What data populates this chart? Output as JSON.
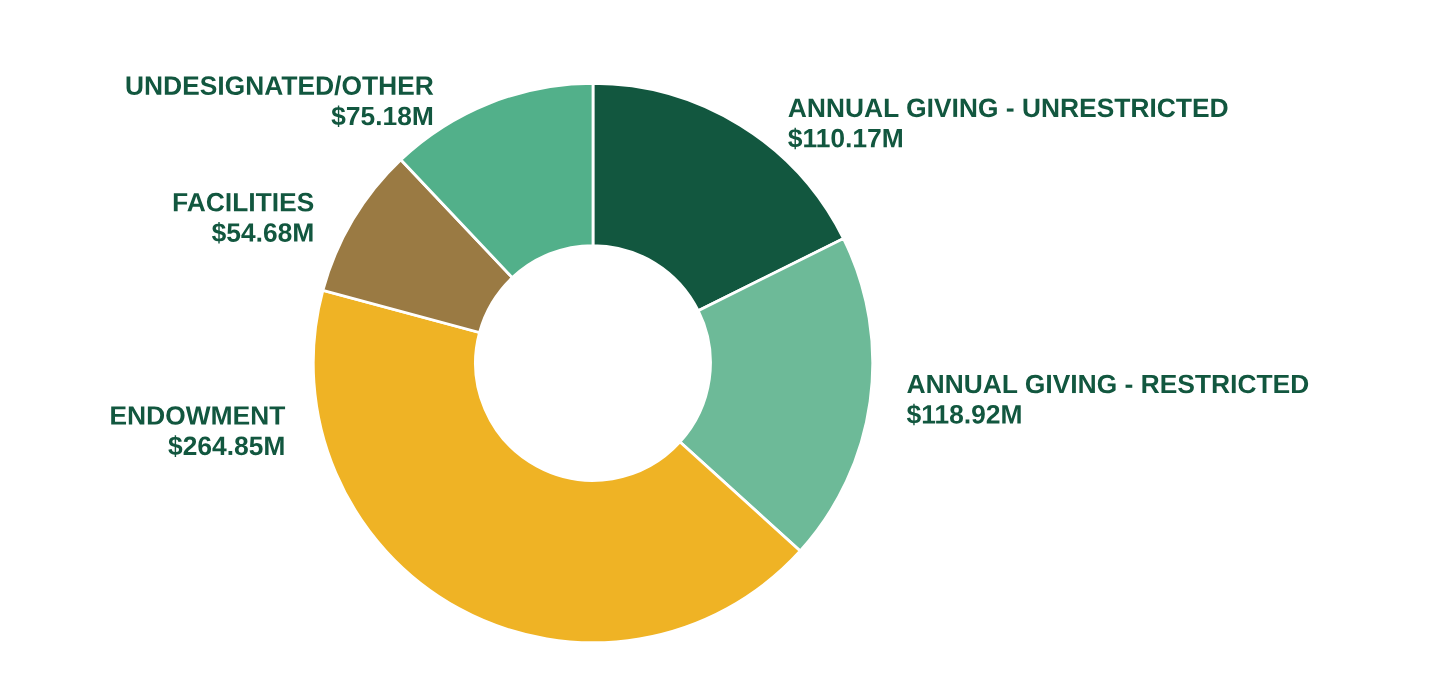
{
  "chart_data": {
    "type": "donut",
    "categories": [
      "ANNUAL GIVING - UNRESTRICTED",
      "ANNUAL GIVING - RESTRICTED",
      "ENDOWMENT",
      "FACILITIES",
      "UNDESIGNATED/OTHER"
    ],
    "values": [
      110.17,
      118.92,
      264.85,
      54.68,
      75.18
    ],
    "value_labels": [
      "$110.17M",
      "$118.92M",
      "$264.85M",
      "$54.68M",
      "$75.18M"
    ],
    "colors": [
      "#12573f",
      "#6dba98",
      "#efb325",
      "#9a7a43",
      "#52b08a"
    ],
    "legend": false
  }
}
